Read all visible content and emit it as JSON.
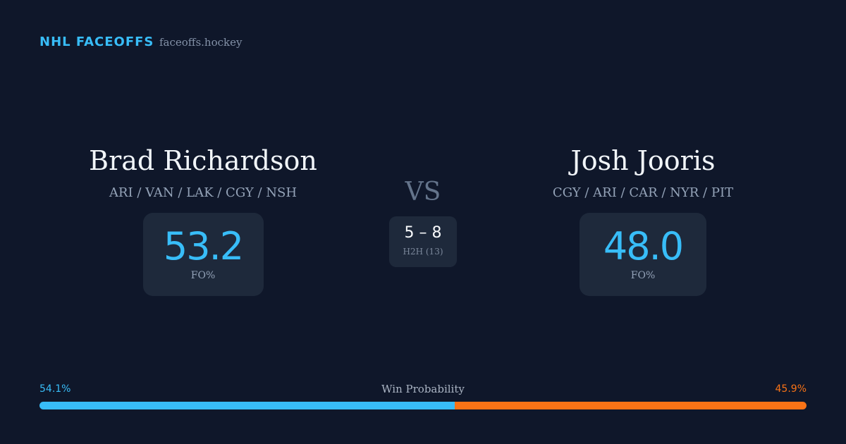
{
  "header": {
    "brand": "NHL FACEOFFS",
    "site": "faceoffs.hockey"
  },
  "players": [
    {
      "name": "Brad Richardson",
      "teams": "ARI / VAN / LAK / CGY / NSH",
      "fo_pct": "53.2",
      "fo_label": "FO%"
    },
    {
      "name": "Josh Jooris",
      "teams": "CGY / ARI / CAR / NYR / PIT",
      "fo_pct": "48.0",
      "fo_label": "FO%"
    }
  ],
  "vs": "VS",
  "h2h": {
    "score": "5 – 8",
    "label": "H2H (13)"
  },
  "win_probability": {
    "title": "Win Probability",
    "values": [
      54.1,
      45.9
    ],
    "value_labels": [
      "54.1%",
      "45.9%"
    ],
    "colors": [
      "#38bdf8",
      "#f97316"
    ]
  }
}
